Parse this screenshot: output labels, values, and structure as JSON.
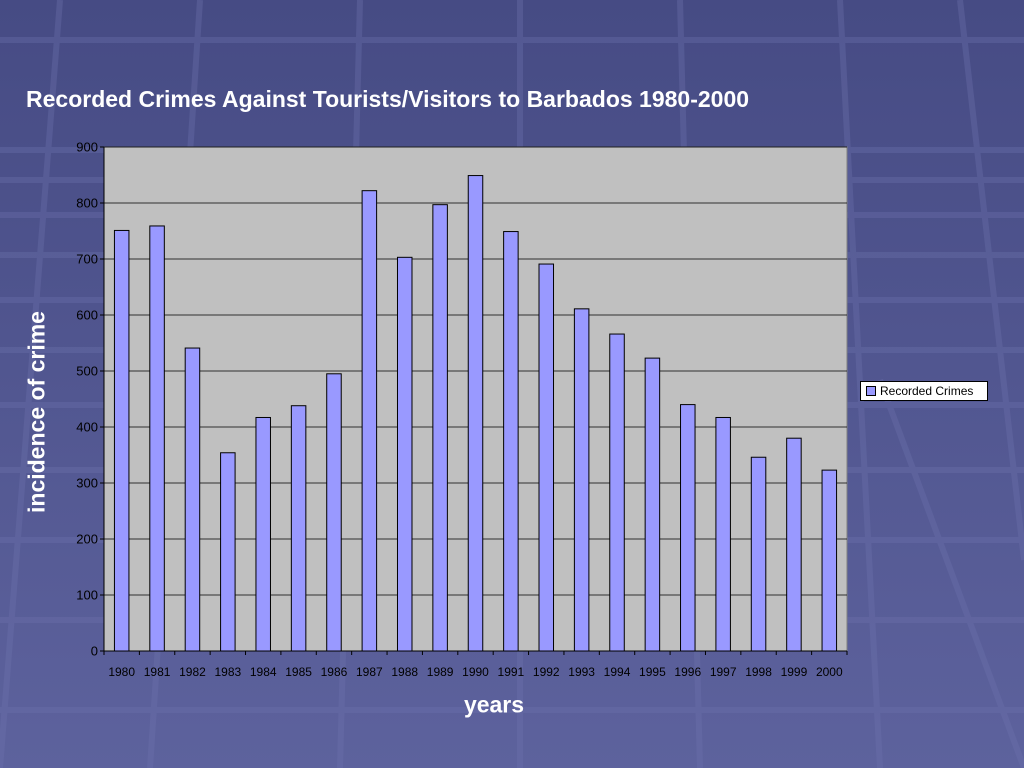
{
  "slide": {
    "title": "Recorded Crimes Against Tourists/Visitors to Barbados 1980-2000"
  },
  "colors": {
    "background": "#50558f",
    "plot_area": "#c0c0c0",
    "bar_fill": "#9999ff",
    "bar_stroke": "#000000",
    "gridline": "#000000",
    "tick_text": "#000000",
    "title_text": "#ffffff"
  },
  "chart_data": {
    "type": "bar",
    "title": "",
    "xlabel": "years",
    "ylabel": "incidence of crime",
    "ylim": [
      0,
      900
    ],
    "yticks": [
      0,
      100,
      200,
      300,
      400,
      500,
      600,
      700,
      800,
      900
    ],
    "grid": true,
    "legend_position": "right",
    "categories": [
      "1980",
      "1981",
      "1982",
      "1983",
      "1984",
      "1985",
      "1986",
      "1987",
      "1988",
      "1989",
      "1990",
      "1991",
      "1992",
      "1993",
      "1994",
      "1995",
      "1996",
      "1997",
      "1998",
      "1999",
      "2000"
    ],
    "series": [
      {
        "name": "Recorded Crimes",
        "values": [
          751,
          759,
          541,
          354,
          417,
          438,
          495,
          822,
          703,
          797,
          849,
          749,
          691,
          611,
          566,
          523,
          440,
          417,
          346,
          380,
          323
        ]
      }
    ]
  }
}
